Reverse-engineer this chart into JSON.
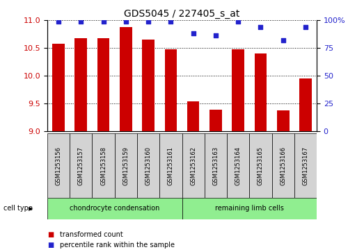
{
  "title": "GDS5045 / 227405_s_at",
  "samples": [
    "GSM1253156",
    "GSM1253157",
    "GSM1253158",
    "GSM1253159",
    "GSM1253160",
    "GSM1253161",
    "GSM1253162",
    "GSM1253163",
    "GSM1253164",
    "GSM1253165",
    "GSM1253166",
    "GSM1253167"
  ],
  "transformed_count": [
    10.58,
    10.68,
    10.67,
    10.88,
    10.65,
    10.47,
    9.54,
    9.38,
    10.47,
    10.4,
    9.37,
    9.95
  ],
  "percentile_rank": [
    99,
    99,
    99,
    99,
    99,
    99,
    88,
    86,
    99,
    94,
    82,
    94
  ],
  "ylim_left": [
    9,
    11
  ],
  "ylim_right": [
    0,
    100
  ],
  "yticks_left": [
    9,
    9.5,
    10,
    10.5,
    11
  ],
  "yticks_right": [
    0,
    25,
    50,
    75,
    100
  ],
  "bar_color": "#cc0000",
  "dot_color": "#2222cc",
  "cell_type_label": "cell type",
  "groups": [
    {
      "label": "chondrocyte condensation",
      "start": 0,
      "end": 6
    },
    {
      "label": "remaining limb cells",
      "start": 6,
      "end": 12
    }
  ],
  "group_color": "#90ee90",
  "sample_box_color": "#d3d3d3",
  "legend": [
    {
      "label": "transformed count",
      "color": "#cc0000"
    },
    {
      "label": "percentile rank within the sample",
      "color": "#2222cc"
    }
  ],
  "left_tick_color": "#cc0000",
  "right_tick_color": "#2222cc",
  "title_fontsize": 10,
  "tick_fontsize": 8,
  "bar_width": 0.55
}
